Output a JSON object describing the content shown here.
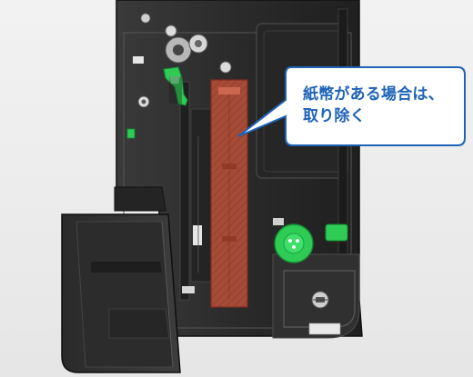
{
  "callout": {
    "line1": "紙幣がある場合は、",
    "line2": "取り除く"
  },
  "colors": {
    "highlight_fill": "#b85038",
    "highlight_stroke": "#8a2e1e",
    "callout_border": "#1e63b8",
    "callout_text": "#1e63b8",
    "lever_green": "#2ecc55",
    "device_body": "#2b2b2b"
  },
  "icons": {
    "knob": "knob-icon",
    "lock": "lock-icon"
  }
}
